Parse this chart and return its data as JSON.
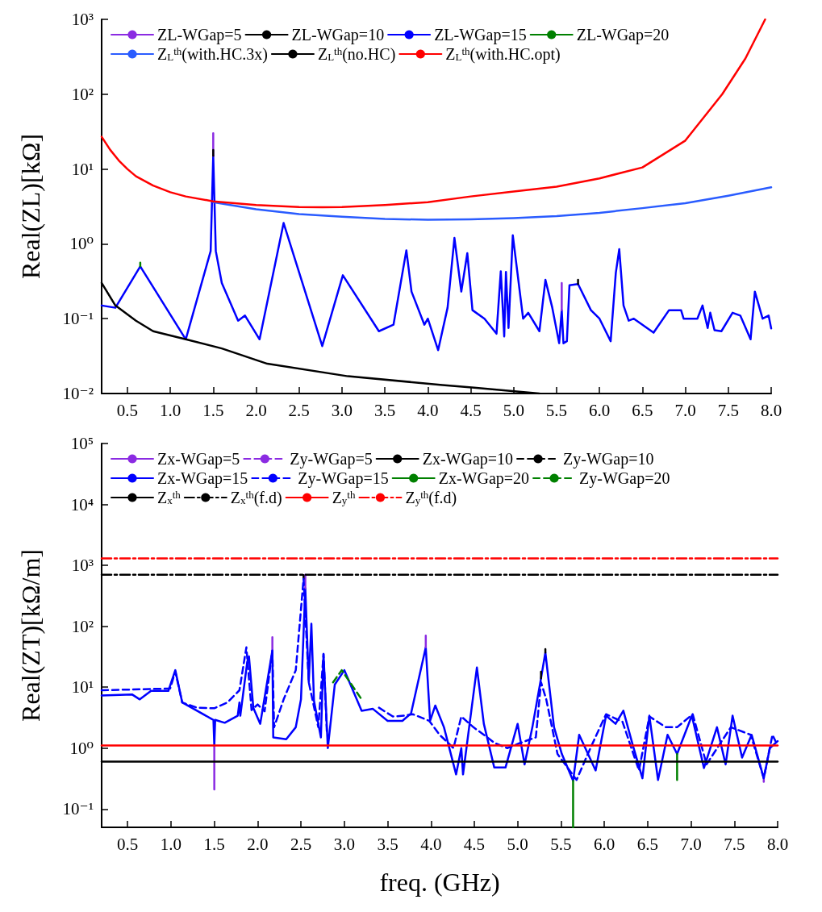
{
  "chart_data": [
    {
      "type": "line",
      "ylabel": "Real(ZL)[kΩ]",
      "log": "y",
      "legend": "top",
      "marker": "none",
      "xlim": [
        0.2,
        8.0
      ],
      "xticks": [
        {
          "value": 0.5,
          "label": "0.5"
        },
        {
          "value": 1,
          "label": "1.0"
        },
        {
          "value": 1.5,
          "label": "1.5"
        },
        {
          "value": 2,
          "label": "2.0"
        },
        {
          "value": 2.5,
          "label": "2.5"
        },
        {
          "value": 3,
          "label": "3.0"
        },
        {
          "value": 3.5,
          "label": "3.5"
        },
        {
          "value": 4,
          "label": "4.0"
        },
        {
          "value": 4.5,
          "label": "4.5"
        },
        {
          "value": 5,
          "label": "5.0"
        },
        {
          "value": 5.5,
          "label": "5.5"
        },
        {
          "value": 6,
          "label": "6.0"
        },
        {
          "value": 6.5,
          "label": "6.5"
        },
        {
          "value": 7,
          "label": "7.0"
        },
        {
          "value": 7.5,
          "label": "7.5"
        },
        {
          "value": 8,
          "label": "8.0"
        }
      ],
      "ylim": [
        0.01,
        1000
      ],
      "yticks": [
        {
          "value": 0.01,
          "label": "10⁻²"
        },
        {
          "value": 0.1,
          "label": "10⁻¹"
        },
        {
          "value": 1,
          "label": "10⁰"
        },
        {
          "value": 10,
          "label": "10¹"
        },
        {
          "value": 100,
          "label": "10²"
        },
        {
          "value": 1000,
          "label": "10³"
        }
      ],
      "x": [
        0.2,
        0.36,
        0.65,
        1.18,
        1.47,
        1.5,
        1.53,
        1.6,
        1.79,
        1.87,
        2.04,
        2.32,
        2.77,
        3.01,
        3.43,
        3.6,
        3.75,
        3.81,
        3.96,
        4.0,
        4.12,
        4.23,
        4.31,
        4.39,
        4.46,
        4.52,
        4.66,
        4.8,
        4.85,
        4.89,
        4.91,
        4.94,
        4.99,
        5.11,
        5.17,
        5.3,
        5.37,
        5.45,
        5.53,
        5.56,
        5.58,
        5.62,
        5.65,
        5.75,
        5.9,
        6.0,
        6.13,
        6.19,
        6.23,
        6.28,
        6.34,
        6.4,
        6.63,
        6.81,
        6.95,
        6.98,
        7.14,
        7.2,
        7.26,
        7.29,
        7.34,
        7.42,
        7.55,
        7.64,
        7.76,
        7.81,
        7.9,
        7.97,
        8.0
      ],
      "series": [
        {
          "name": "ZL-WGap=5",
          "color": "#8b2be2",
          "x": [
            1.5,
            1.5,
            null,
            5.56,
            5.56
          ],
          "values": [
            15,
            30,
            null,
            0.13,
            0.3
          ]
        },
        {
          "name": "ZL-WGap=10",
          "color": "#000000",
          "x": [
            1.5,
            1.5,
            null,
            5.75,
            5.75
          ],
          "values": [
            15,
            18,
            null,
            0.29,
            0.33
          ]
        },
        {
          "name": "ZL-WGap=15",
          "color": "#0000ff",
          "values": [
            0.15,
            0.14,
            0.5,
            0.053,
            0.8,
            15,
            0.8,
            0.3,
            0.094,
            0.11,
            0.053,
            1.9,
            0.043,
            0.38,
            0.068,
            0.083,
            0.82,
            0.23,
            0.083,
            0.1,
            0.038,
            0.14,
            1.2,
            0.23,
            0.75,
            0.13,
            0.1,
            0.063,
            0.43,
            0.058,
            0.42,
            0.075,
            1.3,
            0.1,
            0.12,
            0.068,
            0.33,
            0.14,
            0.047,
            0.13,
            0.047,
            0.05,
            0.28,
            0.29,
            0.13,
            0.1,
            0.05,
            0.41,
            0.85,
            0.15,
            0.094,
            0.1,
            0.065,
            0.13,
            0.13,
            0.1,
            0.1,
            0.15,
            0.075,
            0.12,
            0.07,
            0.068,
            0.12,
            0.11,
            0.053,
            0.23,
            0.1,
            0.11,
            0.074
          ]
        },
        {
          "name": "ZL-WGap=20",
          "color": "#008000",
          "x": [
            0.65,
            0.65
          ],
          "values": [
            0.5,
            0.56
          ]
        },
        {
          "name": "Z$_{L}$$^{th}$(with.HC.3x)",
          "color": "#2a5cff",
          "x": [
            1.5,
            2.0,
            2.5,
            3.0,
            3.5,
            4.0,
            4.5,
            5.0,
            5.5,
            6.0,
            6.5,
            7.0,
            7.5,
            8.0
          ],
          "values": [
            3.6,
            2.9,
            2.5,
            2.3,
            2.15,
            2.1,
            2.12,
            2.2,
            2.35,
            2.6,
            3.0,
            3.5,
            4.4,
            5.7
          ]
        },
        {
          "name": "Z$_{L}$$^{th}$(no.HC)",
          "color": "#000000",
          "x": [
            0.2,
            0.36,
            0.6,
            0.8,
            1.18,
            1.6,
            2.13,
            3.07,
            4.17,
            4.54,
            5.3
          ],
          "values": [
            0.3,
            0.15,
            0.094,
            0.068,
            0.053,
            0.04,
            0.025,
            0.017,
            0.013,
            0.012,
            0.01
          ]
        },
        {
          "name": "Z$_{L}$$^{th}$(with.HC.opt)",
          "color": "#ff0000",
          "x": [
            0.2,
            0.3,
            0.4,
            0.5,
            0.6,
            0.8,
            1.0,
            1.18,
            1.5,
            2.0,
            2.5,
            2.77,
            3.0,
            3.5,
            4.0,
            4.5,
            5.0,
            5.5,
            6.0,
            6.5,
            7.0,
            7.43,
            7.7,
            7.93
          ],
          "values": [
            27,
            18,
            13,
            10,
            8,
            6,
            4.9,
            4.3,
            3.7,
            3.3,
            3.1,
            3.08,
            3.1,
            3.3,
            3.6,
            4.3,
            5.0,
            5.8,
            7.5,
            10.5,
            24,
            100,
            300,
            1000
          ]
        }
      ]
    },
    {
      "type": "line",
      "xlabel": "freq. (GHz)",
      "ylabel": "Real(ZT)[kΩ/m]",
      "log": "y",
      "legend": "top",
      "marker": "none",
      "xlim": [
        0.2,
        8.0
      ],
      "xticks": [
        {
          "value": 0.5,
          "label": "0.5"
        },
        {
          "value": 1,
          "label": "1.0"
        },
        {
          "value": 1.5,
          "label": "1.5"
        },
        {
          "value": 2,
          "label": "2.0"
        },
        {
          "value": 2.5,
          "label": "2.5"
        },
        {
          "value": 3,
          "label": "3.0"
        },
        {
          "value": 3.5,
          "label": "3.5"
        },
        {
          "value": 4,
          "label": "4.0"
        },
        {
          "value": 4.5,
          "label": "4.5"
        },
        {
          "value": 5,
          "label": "5.0"
        },
        {
          "value": 5.5,
          "label": "5.5"
        },
        {
          "value": 6,
          "label": "6.0"
        },
        {
          "value": 6.5,
          "label": "6.5"
        },
        {
          "value": 7,
          "label": "7.0"
        },
        {
          "value": 7.5,
          "label": "7.5"
        },
        {
          "value": 8,
          "label": "8.0"
        }
      ],
      "ylim": [
        0.05,
        100000
      ],
      "yticks": [
        {
          "value": 0.1,
          "label": "10⁻¹"
        },
        {
          "value": 1,
          "label": "10⁰"
        },
        {
          "value": 10,
          "label": "10¹"
        },
        {
          "value": 100,
          "label": "10²"
        },
        {
          "value": 1000,
          "label": "10³"
        },
        {
          "value": 10000,
          "label": "10⁴"
        },
        {
          "value": 100000,
          "label": "10⁵"
        }
      ],
      "x": [
        0.2,
        0.55,
        0.64,
        0.77,
        0.97,
        1.05,
        1.13,
        1.49,
        1.5,
        1.51,
        1.62,
        1.77,
        1.79,
        1.8,
        1.88,
        1.9,
        1.95,
        2.03,
        2.17,
        2.18,
        2.33,
        2.44,
        2.5,
        2.55,
        2.59,
        2.62,
        2.65,
        2.73,
        2.76,
        2.81,
        2.89,
        3.0,
        3.2,
        3.33,
        3.5,
        3.67,
        3.77,
        3.94,
        3.99,
        4.05,
        4.15,
        4.26,
        4.29,
        4.35,
        4.37,
        4.53,
        4.61,
        4.73,
        4.86,
        5.0,
        5.08,
        5.17,
        5.27,
        5.32,
        5.42,
        5.51,
        5.64,
        5.71,
        5.9,
        6.02,
        6.13,
        6.22,
        6.33,
        6.44,
        6.52,
        6.62,
        6.73,
        6.84,
        7.01,
        7.15,
        7.3,
        7.4,
        7.48,
        7.59,
        7.7,
        7.84,
        7.91,
        8.0
      ],
      "series": [
        {
          "name": "Zx-WGap=5",
          "color": "#8b2be2",
          "x": [
            1.5,
            1.5,
            null,
            2.17,
            2.17,
            null,
            2.55,
            2.55,
            null,
            3.94,
            3.94
          ],
          "values": [
            1.1,
            0.21,
            null,
            40,
            66,
            null,
            420,
            700,
            null,
            45,
            70
          ]
        },
        {
          "name": "Zy-WGap=5",
          "color": "#8b2be2",
          "line_style": "dashed",
          "x": [
            7.84,
            7.84
          ],
          "values": [
            0.32,
            0.28
          ]
        },
        {
          "name": "Zx-WGap=10",
          "color": "#000000",
          "x": [
            5.27,
            5.27,
            null,
            5.32,
            5.32
          ],
          "values": [
            14,
            18,
            null,
            37,
            42
          ]
        },
        {
          "name": "Zy-WGap=10",
          "color": "#000000",
          "line_style": "dashed",
          "x": [
            2.53,
            2.53
          ],
          "values": [
            600,
            690
          ]
        },
        {
          "name": "Zx-WGap=15",
          "color": "#0000ff",
          "values": [
            7.3,
            7.6,
            6.3,
            8.7,
            8.7,
            19,
            5.6,
            2.9,
            1.1,
            2.9,
            2.6,
            3.4,
            5.6,
            3.4,
            26,
            32,
            4.6,
            2.5,
            40,
            1.5,
            1.4,
            2.2,
            6.3,
            420,
            12,
            110,
            6,
            1.5,
            35,
            1.0,
            11,
            19,
            4.1,
            4.4,
            2.8,
            2.8,
            3.7,
            45,
            2.8,
            5,
            2.2,
            0.54,
            0.37,
            1.0,
            0.37,
            21,
            2.5,
            0.48,
            0.48,
            2.5,
            0.54,
            2.2,
            14,
            37,
            2.2,
            0.8,
            0.29,
            1.65,
            0.43,
            3.4,
            2.5,
            4.1,
            1.1,
            0.32,
            3.4,
            0.3,
            1.65,
            0.8,
            3.4,
            0.47,
            2.2,
            0.54,
            3.4,
            0.7,
            1.65,
            0.32,
            1.0,
            1.3
          ]
        },
        {
          "name": "Zy-WGap=15",
          "color": "#0000ff",
          "line_style": "dashed",
          "x": [
            0.2,
            0.99,
            1.05,
            1.13,
            1.3,
            1.5,
            1.65,
            1.79,
            1.87,
            1.93,
            2.0,
            2.08,
            2.17,
            2.19,
            2.3,
            2.44,
            2.53,
            2.59,
            2.7,
            2.76,
            2.8,
            2.87,
            2.97,
            3.2,
            3.4,
            3.56,
            3.69,
            3.79,
            3.98,
            4.1,
            4.26,
            4.35,
            4.49,
            4.61,
            4.74,
            4.88,
            5.02,
            5.21,
            5.27,
            5.33,
            5.46,
            5.68,
            5.84,
            6.02,
            6.21,
            6.4,
            6.52,
            6.71,
            6.84,
            7.02,
            7.18,
            7.46,
            7.69,
            7.84,
            7.94,
            8.0
          ],
          "values": [
            8.9,
            9.5,
            18,
            5.6,
            4.6,
            4.5,
            5.6,
            8.9,
            45,
            4.2,
            5.2,
            4.0,
            40,
            2.2,
            6.3,
            19,
            600,
            12,
            2.2,
            35,
            1.65,
            null,
            null,
            null,
            4.6,
            3.3,
            3.4,
            3.6,
            2.8,
            1.65,
            1.0,
            3.3,
            2.2,
            1.65,
            1.2,
            1.0,
            1.2,
            1.5,
            12,
            6.3,
            0.8,
            0.3,
            1.0,
            3.6,
            2.7,
            0.43,
            3.3,
            2.2,
            2.2,
            3.6,
            0.54,
            2.2,
            1.65,
            0.32,
            1.65,
            1.1
          ]
        },
        {
          "name": "Zx-WGap=20",
          "color": "#008000",
          "x": [
            5.64,
            5.64,
            null,
            6.84,
            6.84
          ],
          "values": [
            0.29,
            0.05,
            null,
            0.8,
            0.3
          ]
        },
        {
          "name": "Zy-WGap=20",
          "color": "#008000",
          "line_style": "dashed",
          "x": [
            2.87,
            2.97,
            3.2
          ],
          "values": [
            12,
            19,
            6.3
          ]
        },
        {
          "name": "Z$_{x}$$^{th}$",
          "color": "#000000",
          "x": [
            0.2,
            8.0
          ],
          "values": [
            0.6,
            0.6
          ]
        },
        {
          "name": "Z$_{x}$$^{th}$(f.d)",
          "color": "#000000",
          "line_style": "dashdot",
          "x": [
            0.2,
            8.0
          ],
          "values": [
            700,
            700
          ]
        },
        {
          "name": "Z$_{y}$$^{th}$",
          "color": "#ff0000",
          "x": [
            0.2,
            8.0
          ],
          "values": [
            1.1,
            1.1
          ]
        },
        {
          "name": "Z$_{y}$$^{th}$(f.d)",
          "color": "#ff0000",
          "line_style": "dashdot",
          "x": [
            0.2,
            8.0
          ],
          "values": [
            1300,
            1300
          ]
        }
      ]
    }
  ]
}
